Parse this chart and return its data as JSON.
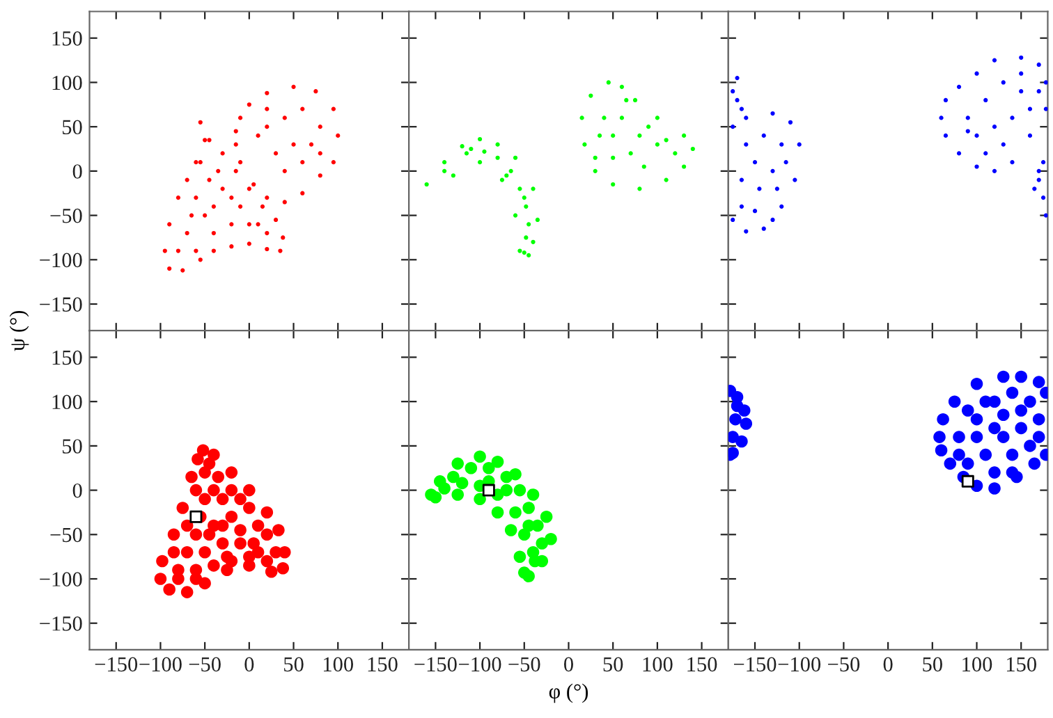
{
  "chart_data": [
    {
      "type": "scatter",
      "marker": "circle",
      "xlim": [
        -180,
        180
      ],
      "ylim": [
        -180,
        180
      ],
      "xticks": [
        -150,
        -100,
        -50,
        0,
        50,
        100,
        150
      ],
      "yticks": [
        -150,
        -100,
        -50,
        0,
        50,
        100,
        150
      ],
      "tick_labels": "y",
      "grid": false,
      "legend": false,
      "series": [
        {
          "color": "#ff0000",
          "x": [
            -15,
            -10,
            0,
            20,
            50,
            75,
            95,
            100,
            95,
            80,
            60,
            40,
            20,
            5,
            -10,
            -15,
            20,
            40,
            60,
            80,
            50,
            70,
            30,
            60,
            40,
            80,
            20,
            10,
            -55,
            -50,
            -60,
            -70,
            -80,
            -90,
            -95,
            -90,
            -75,
            -55,
            -40,
            -20,
            0,
            20,
            35,
            38,
            30,
            15,
            0,
            -15,
            -30,
            -45,
            -60,
            -50,
            -70,
            -40,
            -20,
            -10,
            0,
            20,
            -80,
            -60,
            -30,
            -45,
            -55,
            -35,
            -20,
            10,
            -65,
            -40
          ],
          "values": [
            45,
            60,
            75,
            88,
            95,
            90,
            70,
            40,
            10,
            -5,
            -25,
            -35,
            -30,
            -15,
            10,
            30,
            50,
            60,
            70,
            50,
            30,
            30,
            20,
            10,
            0,
            20,
            70,
            40,
            55,
            35,
            10,
            -10,
            -30,
            -60,
            -90,
            -110,
            -112,
            -100,
            -90,
            -85,
            -82,
            -88,
            -90,
            -75,
            -55,
            -40,
            -20,
            0,
            20,
            35,
            -30,
            -50,
            -70,
            -70,
            -60,
            -40,
            -60,
            -70,
            -90,
            -90,
            -20,
            -10,
            10,
            0,
            -30,
            -60,
            -50,
            -40
          ]
        }
      ]
    },
    {
      "type": "scatter",
      "marker": "circle",
      "xlim": [
        -180,
        180
      ],
      "ylim": [
        -180,
        180
      ],
      "xticks": [
        -150,
        -100,
        -50,
        0,
        50,
        100,
        150
      ],
      "yticks": [
        -150,
        -100,
        -50,
        0,
        50,
        100,
        150
      ],
      "tick_labels": false,
      "grid": false,
      "legend": false,
      "series": [
        {
          "color": "#00ff00",
          "x": [
            -160,
            -140,
            -120,
            -100,
            -80,
            -60,
            -40,
            -35,
            -40,
            -45,
            -50,
            -55,
            -60,
            -75,
            -100,
            -130,
            -140,
            -115,
            -95,
            -80,
            -65,
            -55,
            -48,
            -45,
            -48,
            -110,
            -70,
            -50,
            15,
            25,
            45,
            60,
            75,
            100,
            130,
            140,
            130,
            110,
            80,
            50,
            30,
            18,
            40,
            60,
            50,
            80,
            100,
            70,
            50,
            90,
            110,
            35,
            65,
            120,
            85,
            30
          ],
          "values": [
            -15,
            10,
            28,
            36,
            30,
            15,
            -20,
            -55,
            -80,
            -95,
            -92,
            -90,
            -50,
            -10,
            10,
            -5,
            0,
            20,
            22,
            15,
            0,
            -20,
            -40,
            -60,
            -75,
            25,
            -5,
            -30,
            60,
            85,
            100,
            95,
            80,
            60,
            40,
            25,
            5,
            -10,
            -20,
            -15,
            0,
            30,
            60,
            60,
            40,
            40,
            30,
            20,
            15,
            50,
            35,
            40,
            80,
            20,
            5,
            15
          ]
        }
      ]
    },
    {
      "type": "scatter",
      "marker": "circle",
      "xlim": [
        -180,
        180
      ],
      "ylim": [
        -180,
        180
      ],
      "xticks": [
        -150,
        -100,
        -50,
        0,
        50,
        100,
        150
      ],
      "yticks": [
        -150,
        -100,
        -50,
        0,
        50,
        100,
        150
      ],
      "tick_labels": false,
      "grid": false,
      "legend": false,
      "series": [
        {
          "color": "#0000ff",
          "x": [
            -175,
            -160,
            -130,
            -110,
            -100,
            -105,
            -120,
            -140,
            -160,
            -175,
            -160,
            -140,
            -120,
            -150,
            -130,
            -165,
            -145,
            -125,
            -150,
            -130,
            -165,
            -115,
            -175,
            -170,
            -165,
            -170,
            60,
            65,
            80,
            100,
            120,
            150,
            170,
            178,
            178,
            160,
            140,
            120,
            100,
            80,
            65,
            90,
            110,
            130,
            150,
            160,
            120,
            100,
            140,
            130,
            110,
            150,
            90,
            170,
            170,
            175,
            165,
            178,
            170,
            175
          ],
          "values": [
            50,
            60,
            65,
            55,
            30,
            -10,
            -40,
            -65,
            -68,
            -55,
            30,
            40,
            30,
            10,
            0,
            -10,
            -20,
            -20,
            -45,
            -55,
            -40,
            10,
            90,
            80,
            70,
            105,
            60,
            80,
            95,
            110,
            125,
            128,
            120,
            100,
            70,
            40,
            10,
            0,
            5,
            20,
            40,
            60,
            80,
            100,
            90,
            70,
            50,
            40,
            60,
            30,
            20,
            110,
            45,
            90,
            -10,
            -30,
            -20,
            -50,
            0,
            10
          ]
        }
      ]
    },
    {
      "type": "scatter",
      "marker": "circle",
      "xlim": [
        -180,
        180
      ],
      "ylim": [
        -180,
        180
      ],
      "xticks": [
        -150,
        -100,
        -50,
        0,
        50,
        100,
        150
      ],
      "yticks": [
        -150,
        -100,
        -50,
        0,
        50,
        100,
        150
      ],
      "ylabel": "ψ (°)",
      "grid": false,
      "legend": false,
      "series": [
        {
          "color": "#ff0000",
          "x": [
            -52,
            -40,
            -20,
            0,
            20,
            33,
            40,
            38,
            25,
            0,
            -25,
            -50,
            -70,
            -90,
            -100,
            -98,
            -85,
            -75,
            -65,
            -58,
            -50,
            -40,
            -30,
            -20,
            -50,
            -70,
            -60,
            -40,
            -20,
            0,
            10,
            20,
            30,
            10,
            -10,
            -30,
            -50,
            -70,
            -80,
            -60,
            -40,
            -20,
            0,
            20,
            -80,
            -60,
            -55,
            -45,
            -10,
            -30,
            -60,
            -45,
            -35,
            -85,
            -10,
            5,
            -25
          ],
          "values": [
            45,
            40,
            20,
            0,
            -25,
            -45,
            -70,
            -88,
            -92,
            -85,
            -90,
            -105,
            -115,
            -112,
            -100,
            -80,
            -50,
            -20,
            15,
            35,
            20,
            0,
            -10,
            0,
            -10,
            -40,
            -50,
            -40,
            -30,
            -20,
            -40,
            -50,
            -70,
            -70,
            -60,
            -60,
            -70,
            -70,
            -90,
            -90,
            -85,
            -80,
            -75,
            -80,
            -100,
            -100,
            -30,
            -50,
            -45,
            -40,
            0,
            30,
            15,
            -70,
            -10,
            -60,
            -75
          ]
        },
        {
          "color": "#ffffff",
          "marker": "square",
          "x": [
            -60
          ],
          "values": [
            -30
          ]
        }
      ]
    },
    {
      "type": "scatter",
      "marker": "circle",
      "xlim": [
        -180,
        180
      ],
      "ylim": [
        -180,
        180
      ],
      "xticks": [
        -150,
        -100,
        -50,
        0,
        50,
        100,
        150
      ],
      "yticks": [
        -150,
        -100,
        -50,
        0,
        50,
        100,
        150
      ],
      "xlabel": "φ (°)",
      "tick_labels": "x",
      "grid": false,
      "legend": false,
      "series": [
        {
          "color": "#00ff00",
          "x": [
            -155,
            -145,
            -125,
            -100,
            -80,
            -60,
            -40,
            -25,
            -20,
            -30,
            -45,
            -50,
            -55,
            -65,
            -80,
            -100,
            -125,
            -150,
            -130,
            -110,
            -90,
            -70,
            -55,
            -45,
            -35,
            -30,
            -40,
            -50,
            -60,
            -80,
            -100,
            -120,
            -140,
            -90,
            -70,
            -45,
            -38
          ],
          "values": [
            -5,
            10,
            30,
            38,
            32,
            18,
            -5,
            -30,
            -55,
            -80,
            -97,
            -93,
            -75,
            -45,
            -25,
            -10,
            -5,
            -8,
            15,
            25,
            25,
            15,
            0,
            -20,
            -40,
            -60,
            -70,
            -50,
            -25,
            -5,
            5,
            8,
            2,
            10,
            0,
            -40,
            -80
          ]
        },
        {
          "color": "#ffffff",
          "marker": "square",
          "x": [
            -90
          ],
          "values": [
            0
          ]
        }
      ]
    },
    {
      "type": "scatter",
      "marker": "circle",
      "xlim": [
        -180,
        180
      ],
      "ylim": [
        -180,
        180
      ],
      "xticks": [
        -150,
        -100,
        -50,
        0,
        50,
        100,
        150
      ],
      "yticks": [
        -150,
        -100,
        -50,
        0,
        50,
        100,
        150
      ],
      "tick_labels": "x",
      "grid": false,
      "legend": false,
      "series": [
        {
          "color": "#0000ff",
          "x": [
            -178,
            -170,
            -162,
            -160,
            -165,
            -175,
            -178,
            -172,
            -175,
            -170,
            58,
            62,
            75,
            100,
            130,
            150,
            170,
            178,
            178,
            165,
            145,
            120,
            100,
            85,
            70,
            60,
            80,
            100,
            120,
            140,
            160,
            170,
            150,
            130,
            110,
            90,
            120,
            140,
            160,
            100,
            80,
            130,
            110,
            150,
            170,
            90,
            140,
            120
          ],
          "values": [
            112,
            105,
            90,
            75,
            55,
            42,
            40,
            80,
            60,
            95,
            60,
            80,
            100,
            120,
            128,
            128,
            122,
            110,
            40,
            30,
            15,
            2,
            5,
            15,
            30,
            45,
            60,
            80,
            100,
            110,
            100,
            80,
            70,
            60,
            40,
            30,
            20,
            40,
            50,
            60,
            40,
            85,
            100,
            90,
            60,
            90,
            20,
            70
          ]
        },
        {
          "color": "#ffffff",
          "marker": "square",
          "x": [
            90
          ],
          "values": [
            10
          ]
        }
      ]
    }
  ]
}
